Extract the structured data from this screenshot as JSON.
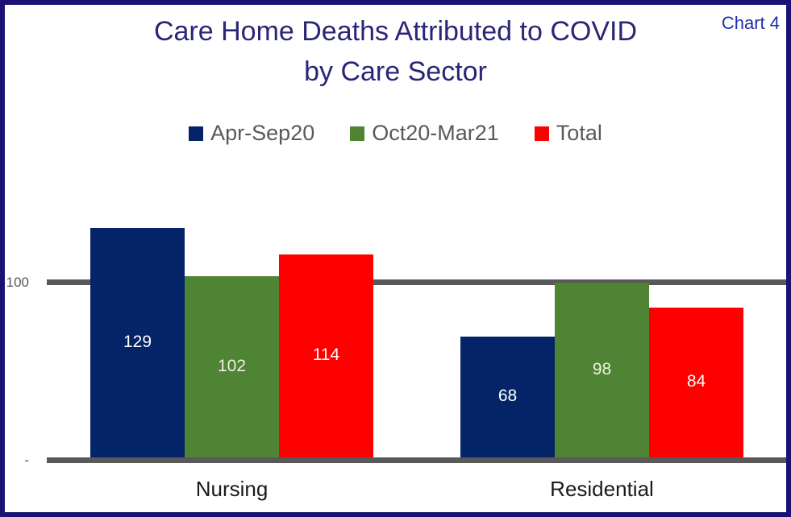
{
  "window": {
    "chart_ref": "Chart 4"
  },
  "title": {
    "line1": "Care Home Deaths Attributed to COVID",
    "line2": "by Care Sector"
  },
  "colors": {
    "border": "#1b1274",
    "title": "#2a2577",
    "chart_ref": "#1d30a6",
    "axis_line": "#595959",
    "tick_label": "#595959",
    "legend_text": "#595959",
    "category_label": "#1a1a1a"
  },
  "chart_data": {
    "type": "bar",
    "title": "Care Home Deaths Attributed to COVID by Care Sector",
    "categories": [
      "Nursing",
      "Residential"
    ],
    "series": [
      {
        "name": "Apr-Sep20",
        "color": "#052468",
        "label_color": "#ffffff",
        "values": [
          129,
          68
        ]
      },
      {
        "name": "Oct20-Mar21",
        "color": "#4e8433",
        "label_color": "#f0f0e1",
        "values": [
          102,
          98
        ]
      },
      {
        "name": "Total",
        "color": "#fe0000",
        "label_color": "#ffffff",
        "values": [
          114,
          84
        ]
      }
    ],
    "xlabel": "",
    "ylabel": "",
    "ylim": [
      0,
      140
    ],
    "yticks": [
      {
        "value": 100,
        "label": "100"
      },
      {
        "value": 0,
        "label": "-"
      }
    ],
    "gridline_values": [
      100
    ],
    "grid": true,
    "legend_position": "top",
    "data_labels": true
  }
}
